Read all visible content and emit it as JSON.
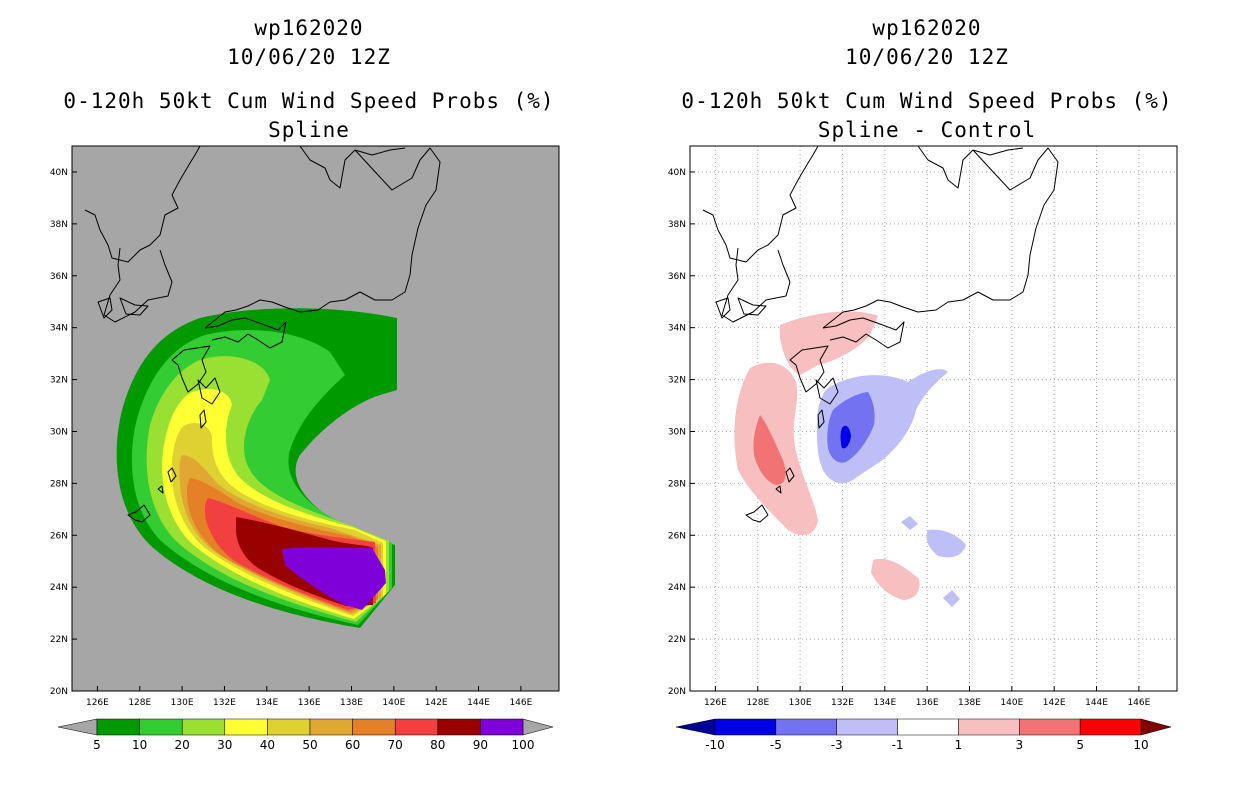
{
  "panels": [
    {
      "storm_id": "wp162020",
      "datetime": "10/06/20 12Z",
      "product": "0-120h 50kt Cum Wind Speed Probs (%)",
      "subtitle": "Spline"
    },
    {
      "storm_id": "wp162020",
      "datetime": "10/06/20 12Z",
      "product": "0-120h 50kt Cum Wind Speed Probs (%)",
      "subtitle": "Spline - Control"
    }
  ],
  "map_axes": {
    "lon_labels": [
      "126E",
      "128E",
      "130E",
      "132E",
      "134E",
      "136E",
      "138E",
      "140E",
      "142E",
      "144E",
      "146E"
    ],
    "lon_values": [
      126,
      128,
      130,
      132,
      134,
      136,
      138,
      140,
      142,
      144,
      146
    ],
    "lat_labels": [
      "20N",
      "22N",
      "24N",
      "26N",
      "28N",
      "30N",
      "32N",
      "34N",
      "36N",
      "38N",
      "40N"
    ],
    "lat_values": [
      20,
      22,
      24,
      26,
      28,
      30,
      32,
      34,
      36,
      38,
      40
    ],
    "lon_range": [
      124.8,
      147.8
    ],
    "lat_range": [
      20,
      41
    ]
  },
  "colorbars": {
    "left": {
      "colors": [
        "#009900",
        "#33cc33",
        "#99e033",
        "#ffff33",
        "#e0d133",
        "#e0a833",
        "#e68026",
        "#f24040",
        "#990000",
        "#8000d9"
      ],
      "labels": [
        "5",
        "10",
        "20",
        "30",
        "40",
        "50",
        "60",
        "70",
        "80",
        "90",
        "100"
      ],
      "under_color": "#a6a6a6",
      "over_color": "#a6a6a6"
    },
    "right": {
      "colors": [
        "#0000e6",
        "#7373f2",
        "#bfbff7",
        "#ffffff",
        "#f7bfbf",
        "#f27373",
        "#ff0000"
      ],
      "labels": [
        "-10",
        "-5",
        "-3",
        "-1",
        "1",
        "3",
        "5",
        "10"
      ],
      "under_color": "#000099",
      "over_color": "#800000"
    }
  },
  "colors": {
    "map_background_left": "#a6a6a6",
    "map_background_right": "#ffffff",
    "coastline": "#000000",
    "grid_right": "#a8a8a8"
  }
}
